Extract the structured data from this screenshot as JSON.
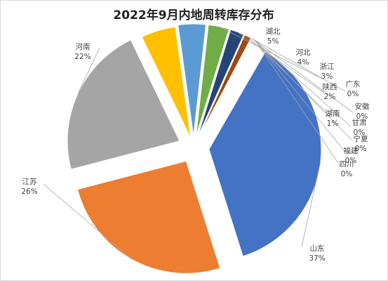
{
  "chart_data": {
    "type": "pie",
    "title": "2022年9月内地周转库存分布",
    "exploded": true,
    "start_angle_deg": -60,
    "direction": "clockwise",
    "slices": [
      {
        "name": "山东",
        "value": 37,
        "label": "37%",
        "color": "#4472c4"
      },
      {
        "name": "江苏",
        "value": 26,
        "label": "26%",
        "color": "#ed7d31"
      },
      {
        "name": "河南",
        "value": 22,
        "label": "22%",
        "color": "#a5a5a5"
      },
      {
        "name": "湖北",
        "value": 5,
        "label": "5%",
        "color": "#ffc000"
      },
      {
        "name": "河北",
        "value": 4,
        "label": "4%",
        "color": "#5b9bd5"
      },
      {
        "name": "浙江",
        "value": 3,
        "label": "3%",
        "color": "#70ad47"
      },
      {
        "name": "陕西",
        "value": 2,
        "label": "2%",
        "color": "#264478"
      },
      {
        "name": "湖南",
        "value": 1,
        "label": "1%",
        "color": "#9e480e"
      },
      {
        "name": "广东",
        "value": 0.1,
        "label": "0%",
        "color": "#636363"
      },
      {
        "name": "安徽",
        "value": 0.1,
        "label": "0%",
        "color": "#997300"
      },
      {
        "name": "甘肃",
        "value": 0.1,
        "label": "0%",
        "color": "#255e91"
      },
      {
        "name": "宁夏",
        "value": 0.1,
        "label": "0%",
        "color": "#43682b"
      },
      {
        "name": "福建",
        "value": 0.1,
        "label": "0%",
        "color": "#698ed0"
      },
      {
        "name": "四川",
        "value": 0.1,
        "label": "0%",
        "color": "#f1975a"
      }
    ]
  }
}
